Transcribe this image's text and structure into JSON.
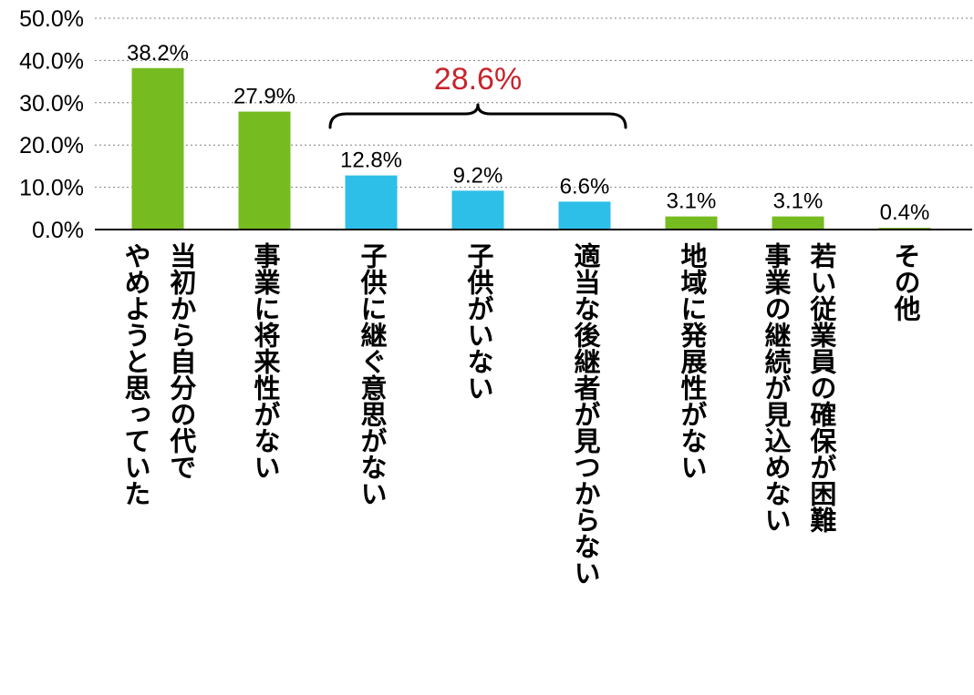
{
  "chart_data": {
    "type": "bar",
    "title": "",
    "xlabel": "",
    "ylabel": "",
    "ylim": [
      0,
      50
    ],
    "yticks": [
      "0.0%",
      "10.0%",
      "20.0%",
      "30.0%",
      "40.0%",
      "50.0%"
    ],
    "grid": true,
    "categories": [
      "当初から自分の代で\nやめようと思っていた",
      "事業に将来性がない",
      "子供に継ぐ意思がない",
      "子供がいない",
      "適当な後継者が見つからない",
      "地域に発展性がない",
      "若い従業員の確保が困難\n事業の継続が見込めない",
      "その他"
    ],
    "values": [
      38.2,
      27.9,
      12.8,
      9.2,
      6.6,
      3.1,
      3.1,
      0.4
    ],
    "value_labels": [
      "38.2%",
      "27.9%",
      "12.8%",
      "9.2%",
      "6.6%",
      "3.1%",
      "3.1%",
      "0.4%"
    ],
    "bar_colors": [
      "#76bc21",
      "#76bc21",
      "#2ebfe8",
      "#2ebfe8",
      "#2ebfe8",
      "#76bc21",
      "#76bc21",
      "#76bc21"
    ],
    "annotation": {
      "text": "28.6%",
      "color": "#c8242c",
      "groups": [
        2,
        3,
        4
      ]
    }
  }
}
